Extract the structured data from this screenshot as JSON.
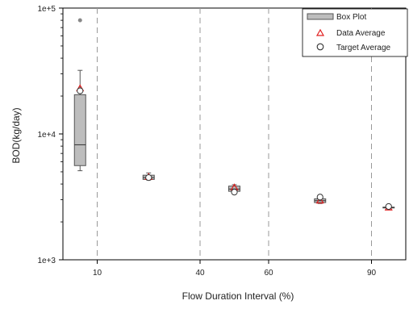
{
  "chart_data": {
    "type": "box",
    "xlabel": "Flow Duration Interval (%)",
    "ylabel": "BOD(kg/day)",
    "x_tick_labels": [
      "10",
      "40",
      "60",
      "90"
    ],
    "x_dividers": [
      10,
      40,
      60,
      90
    ],
    "xlim": [
      0,
      100
    ],
    "y_scale": "log",
    "ylim": [
      1000,
      100000
    ],
    "y_tick_labels": [
      "1e+3",
      "1e+4",
      "1e+5"
    ],
    "legend": {
      "position": "top-right",
      "box_label": "Box Plot",
      "data_avg_label": "Data Average",
      "target_avg_label": "Target Average"
    },
    "boxes": [
      {
        "x": 5,
        "whisker_low": 5100,
        "q1": 5600,
        "median": 8200,
        "q3": 20500,
        "whisker_high": 32000,
        "outliers": [
          80000
        ]
      },
      {
        "x": 25,
        "whisker_low": 4300,
        "q1": 4350,
        "median": 4500,
        "q3": 4700,
        "whisker_high": 4900,
        "outliers": []
      },
      {
        "x": 50,
        "whisker_low": 3450,
        "q1": 3500,
        "median": 3650,
        "q3": 3850,
        "whisker_high": 3950,
        "outliers": []
      },
      {
        "x": 75,
        "whisker_low": 2800,
        "q1": 2850,
        "median": 2950,
        "q3": 3050,
        "whisker_high": 3150,
        "outliers": []
      },
      {
        "x": 95,
        "whisker_low": 2580,
        "q1": 2590,
        "median": 2600,
        "q3": 2620,
        "whisker_high": 2640,
        "outliers": []
      }
    ],
    "data_average": [
      {
        "x": 5,
        "y": 23000
      },
      {
        "x": 25,
        "y": 4550
      },
      {
        "x": 50,
        "y": 3750
      },
      {
        "x": 75,
        "y": 2950
      },
      {
        "x": 95,
        "y": 2600
      }
    ],
    "target_average": [
      {
        "x": 5,
        "y": 22000
      },
      {
        "x": 25,
        "y": 4500
      },
      {
        "x": 50,
        "y": 3450
      },
      {
        "x": 75,
        "y": 3150
      },
      {
        "x": 95,
        "y": 2650
      }
    ],
    "colors": {
      "box_fill": "#bdbdbd",
      "box_stroke": "#555555",
      "data_average": "#e02020",
      "target_average": "#333333",
      "divider": "#999999",
      "outlier": "#888888"
    }
  }
}
